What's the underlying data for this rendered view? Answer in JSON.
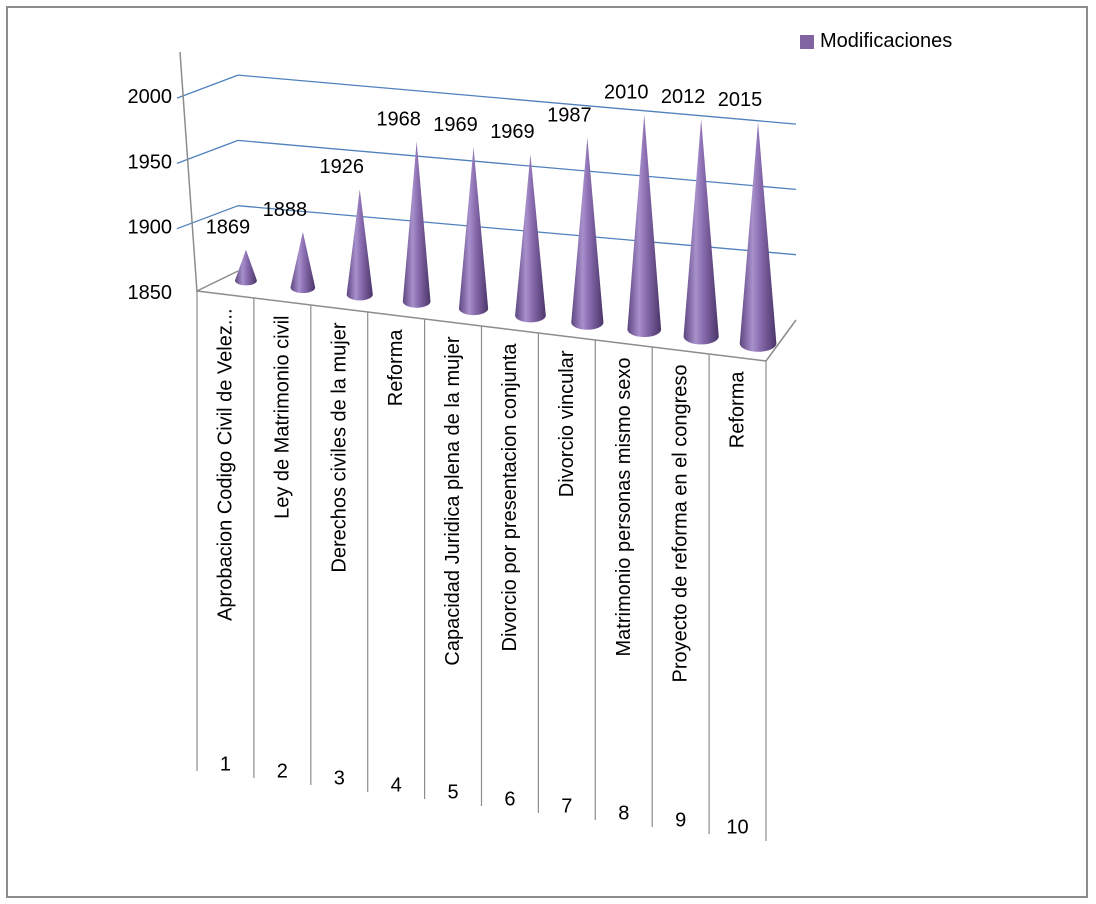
{
  "colors": {
    "cone": "#8064a2",
    "grid": "#4f81bd",
    "axis": "#8c8c8c"
  },
  "chart_data": {
    "type": "bar",
    "style": "3d-cone",
    "ylim": [
      1850,
      2000
    ],
    "yticks": [
      1850,
      1900,
      1950,
      2000
    ],
    "grid": true,
    "legend_position": "top-right",
    "series": [
      {
        "name": "Modificaciones",
        "values": [
          1869,
          1888,
          1926,
          1968,
          1969,
          1969,
          1987,
          2010,
          2012,
          2015
        ]
      }
    ],
    "categories": [
      {
        "number": "1",
        "label": "Aprobacion Codigo Civil de Velez..."
      },
      {
        "number": "2",
        "label": "Ley de Matrimonio civil"
      },
      {
        "number": "3",
        "label": "Derechos civiles de la mujer"
      },
      {
        "number": "4",
        "label": "Reforma"
      },
      {
        "number": "5",
        "label": "Capacidad Juridica plena de la mujer"
      },
      {
        "number": "6",
        "label": "Divorcio por presentacion conjunta"
      },
      {
        "number": "7",
        "label": "Divorcio vincular"
      },
      {
        "number": "8",
        "label": "Matrimonio personas mismo sexo"
      },
      {
        "number": "9",
        "label": "Proyecto de reforma en el congreso"
      },
      {
        "number": "10",
        "label": "Reforma"
      }
    ],
    "data_labels": [
      "1869",
      "1888",
      "1926",
      "1968",
      "1969",
      "1969",
      "1987",
      "2010",
      "2012",
      "2015"
    ]
  }
}
